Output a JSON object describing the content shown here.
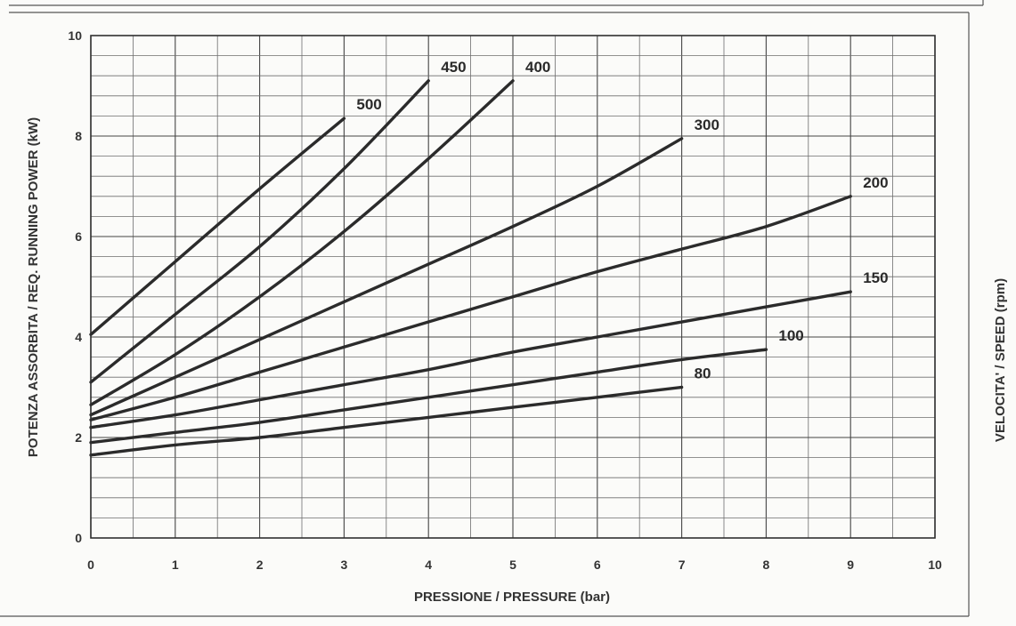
{
  "chart_data": {
    "type": "line",
    "xlabel": "PRESSIONE / PRESSURE (bar)",
    "ylabel": "POTENZA ASSORBITA / REQ. RUNNING POWER (kW)",
    "y2label": "VELOCITA' / SPEED (rpm)",
    "xlim": [
      0,
      10
    ],
    "ylim": [
      0,
      10
    ],
    "x_ticks": [
      0,
      1,
      2,
      3,
      4,
      5,
      6,
      7,
      8,
      9,
      10
    ],
    "y_ticks": [
      0,
      2,
      4,
      6,
      8,
      10
    ],
    "grid": true,
    "series": [
      {
        "name": "500",
        "points": [
          [
            0,
            4.05
          ],
          [
            1,
            5.5
          ],
          [
            2,
            6.95
          ],
          [
            3,
            8.35
          ]
        ]
      },
      {
        "name": "450",
        "points": [
          [
            0,
            3.1
          ],
          [
            1,
            4.45
          ],
          [
            2,
            5.8
          ],
          [
            3,
            7.35
          ],
          [
            4,
            9.1
          ]
        ]
      },
      {
        "name": "400",
        "points": [
          [
            0,
            2.65
          ],
          [
            1,
            3.65
          ],
          [
            2,
            4.8
          ],
          [
            3,
            6.1
          ],
          [
            4,
            7.55
          ],
          [
            5,
            9.1
          ]
        ]
      },
      {
        "name": "300",
        "points": [
          [
            0,
            2.45
          ],
          [
            1,
            3.2
          ],
          [
            2,
            3.95
          ],
          [
            3,
            4.7
          ],
          [
            4,
            5.45
          ],
          [
            5,
            6.2
          ],
          [
            6,
            7.0
          ],
          [
            7,
            7.95
          ]
        ]
      },
      {
        "name": "200",
        "points": [
          [
            0,
            2.35
          ],
          [
            1,
            2.8
          ],
          [
            2,
            3.3
          ],
          [
            3,
            3.8
          ],
          [
            4,
            4.3
          ],
          [
            5,
            4.8
          ],
          [
            6,
            5.3
          ],
          [
            7,
            5.75
          ],
          [
            8,
            6.2
          ],
          [
            9,
            6.8
          ]
        ]
      },
      {
        "name": "150",
        "points": [
          [
            0,
            2.2
          ],
          [
            1,
            2.45
          ],
          [
            2,
            2.75
          ],
          [
            3,
            3.05
          ],
          [
            4,
            3.35
          ],
          [
            5,
            3.7
          ],
          [
            6,
            4.0
          ],
          [
            7,
            4.3
          ],
          [
            8,
            4.6
          ],
          [
            9,
            4.9
          ]
        ]
      },
      {
        "name": "100",
        "points": [
          [
            0,
            1.9
          ],
          [
            1,
            2.1
          ],
          [
            2,
            2.3
          ],
          [
            3,
            2.55
          ],
          [
            4,
            2.8
          ],
          [
            5,
            3.05
          ],
          [
            6,
            3.3
          ],
          [
            7,
            3.55
          ],
          [
            8,
            3.75
          ]
        ]
      },
      {
        "name": "80",
        "points": [
          [
            0,
            1.65
          ],
          [
            1,
            1.85
          ],
          [
            2,
            2.0
          ],
          [
            3,
            2.2
          ],
          [
            4,
            2.4
          ],
          [
            5,
            2.6
          ],
          [
            6,
            2.8
          ],
          [
            7,
            3.0
          ]
        ]
      }
    ]
  }
}
